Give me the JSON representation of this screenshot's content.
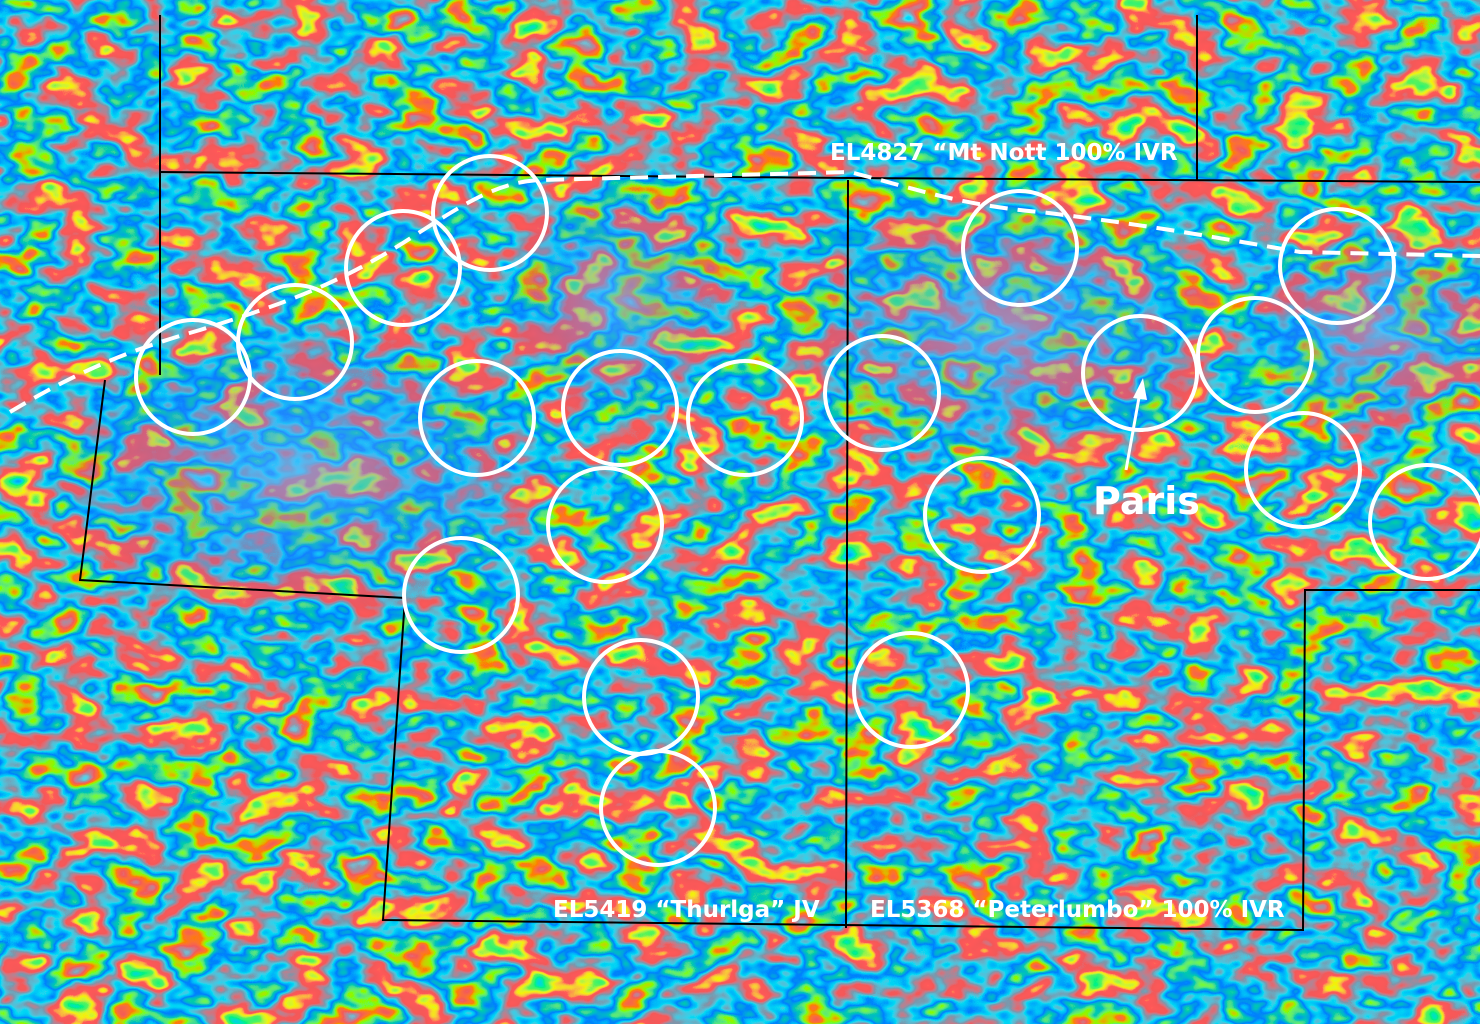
{
  "labels": {
    "mt_nott": "EL4827 “Mt Nott 100% IVR",
    "thurlga": "EL5419 “Thurlga” JV",
    "peterlumbo": "EL5368 “Peterlumbo” 100% IVR",
    "paris": "Paris"
  }
}
